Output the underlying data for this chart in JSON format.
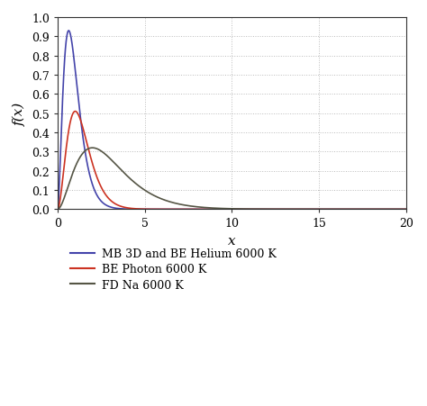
{
  "xlabel": "x",
  "ylabel": "f(x)",
  "xlim": [
    0,
    20
  ],
  "ylim": [
    0,
    1
  ],
  "xticks": [
    0,
    5,
    10,
    15,
    20
  ],
  "yticks": [
    0,
    0.1,
    0.2,
    0.3,
    0.4,
    0.5,
    0.6,
    0.7,
    0.8,
    0.9,
    1
  ],
  "legend": [
    {
      "label": "MB 3D and BE Helium 6000 K",
      "color": "#4444aa"
    },
    {
      "label": "BE Photon 6000 K",
      "color": "#cc3322"
    },
    {
      "label": "FD Na 6000 K",
      "color": "#555545"
    }
  ],
  "grid_color": "#bbbbbb",
  "mb_a": 0.32,
  "mb_peak_scale": 0.93,
  "be_b": 0.36,
  "be_peak_scale": 0.51,
  "fd_c": 1.0,
  "fd_peak_scale": 0.32
}
